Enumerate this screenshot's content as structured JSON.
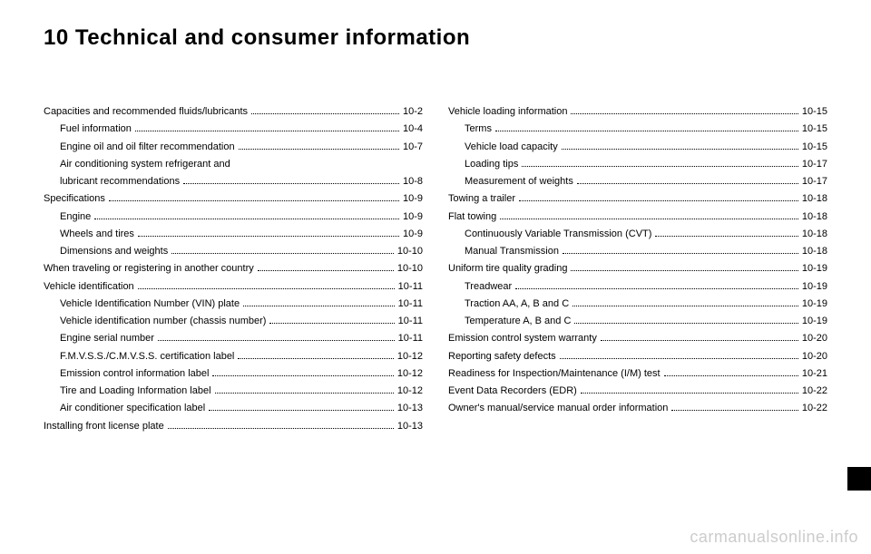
{
  "title": "10 Technical and consumer information",
  "watermark": "carmanualsonline.info",
  "left": [
    {
      "label": "Capacities and recommended fluids/lubricants",
      "page": "10-2",
      "indent": false
    },
    {
      "label": "Fuel information",
      "page": "10-4",
      "indent": true
    },
    {
      "label": "Engine oil and oil filter recommendation",
      "page": "10-7",
      "indent": true
    },
    {
      "label": "Air conditioning system refrigerant and",
      "page": "",
      "indent": true,
      "nobreak": true
    },
    {
      "label": "lubricant recommendations",
      "page": "10-8",
      "indent": true
    },
    {
      "label": "Specifications",
      "page": "10-9",
      "indent": false
    },
    {
      "label": "Engine",
      "page": "10-9",
      "indent": true
    },
    {
      "label": "Wheels and tires",
      "page": "10-9",
      "indent": true
    },
    {
      "label": "Dimensions and weights",
      "page": "10-10",
      "indent": true
    },
    {
      "label": "When traveling or registering in another country",
      "page": "10-10",
      "indent": false
    },
    {
      "label": "Vehicle identification",
      "page": "10-11",
      "indent": false
    },
    {
      "label": "Vehicle Identification Number (VIN) plate",
      "page": "10-11",
      "indent": true
    },
    {
      "label": "Vehicle identification number (chassis number)",
      "page": "10-11",
      "indent": true
    },
    {
      "label": "Engine serial number",
      "page": "10-11",
      "indent": true
    },
    {
      "label": "F.M.V.S.S./C.M.V.S.S. certification label",
      "page": "10-12",
      "indent": true
    },
    {
      "label": "Emission control information label",
      "page": "10-12",
      "indent": true
    },
    {
      "label": "Tire and Loading Information label",
      "page": "10-12",
      "indent": true
    },
    {
      "label": "Air conditioner specification label",
      "page": "10-13",
      "indent": true
    },
    {
      "label": "Installing front license plate",
      "page": "10-13",
      "indent": false
    }
  ],
  "right": [
    {
      "label": "Vehicle loading information",
      "page": "10-15",
      "indent": false
    },
    {
      "label": "Terms",
      "page": "10-15",
      "indent": true
    },
    {
      "label": "Vehicle load capacity",
      "page": "10-15",
      "indent": true
    },
    {
      "label": "Loading tips",
      "page": "10-17",
      "indent": true
    },
    {
      "label": "Measurement of weights",
      "page": "10-17",
      "indent": true
    },
    {
      "label": "Towing a trailer",
      "page": "10-18",
      "indent": false
    },
    {
      "label": "Flat towing",
      "page": "10-18",
      "indent": false
    },
    {
      "label": "Continuously Variable Transmission (CVT)",
      "page": "10-18",
      "indent": true
    },
    {
      "label": "Manual Transmission",
      "page": "10-18",
      "indent": true
    },
    {
      "label": "Uniform tire quality grading",
      "page": "10-19",
      "indent": false
    },
    {
      "label": "Treadwear",
      "page": "10-19",
      "indent": true
    },
    {
      "label": "Traction AA, A, B and C",
      "page": "10-19",
      "indent": true
    },
    {
      "label": "Temperature A, B and C",
      "page": "10-19",
      "indent": true
    },
    {
      "label": "Emission control system warranty",
      "page": "10-20",
      "indent": false
    },
    {
      "label": "Reporting safety defects",
      "page": "10-20",
      "indent": false
    },
    {
      "label": "Readiness for Inspection/Maintenance (I/M) test",
      "page": "10-21",
      "indent": false
    },
    {
      "label": "Event Data Recorders (EDR)",
      "page": "10-22",
      "indent": false
    },
    {
      "label": "Owner's manual/service manual order information",
      "page": "10-22",
      "indent": false
    }
  ]
}
